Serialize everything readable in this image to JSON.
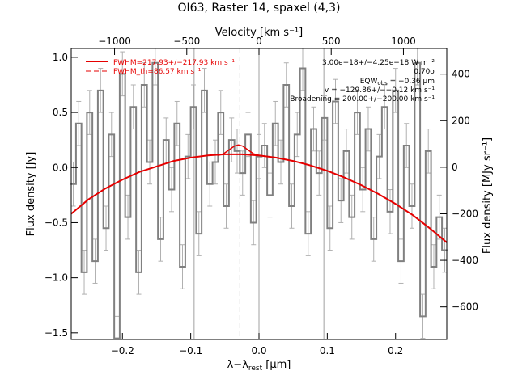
{
  "chart_data": {
    "type": "line",
    "title": "OI63, Raster 14, spaxel (4,3)",
    "xlabel_main": "λ−λ",
    "xlabel_sub": "rest",
    "xlabel_unit": " [μm]",
    "ylabel_left": "Flux density [Jy]",
    "ylabel_right": "Flux density [MJy sr⁻¹]",
    "top_axis_label": "Velocity [km s⁻¹]",
    "xlim": [
      -0.275,
      0.275
    ],
    "ylim": [
      -1.56,
      1.08
    ],
    "right_ylim": [
      -740,
      510
    ],
    "top_xlim": [
      -1300,
      1300
    ],
    "x_ticks": [
      -0.2,
      -0.1,
      0.0,
      0.1,
      0.2
    ],
    "x_tick_labels": [
      "−0.2",
      "−0.1",
      "0.0",
      "0.1",
      "0.2"
    ],
    "y_ticks": [
      1.0,
      0.5,
      0.0,
      -0.5,
      -1.0,
      -1.5
    ],
    "y_tick_labels": [
      "1.0",
      "0.5",
      "0.0",
      "−0.5",
      "−1.0",
      "−1.5"
    ],
    "right_ticks": [
      400,
      200,
      0,
      -200,
      -400,
      -600
    ],
    "right_tick_labels": [
      "400",
      "200",
      "0",
      "−200",
      "−400",
      "−600"
    ],
    "top_ticks": [
      -1000,
      -500,
      0,
      500,
      1000
    ],
    "top_tick_labels": [
      "−1000",
      "−500",
      "0",
      "500",
      "1000"
    ],
    "reference_lines_x": [
      -0.095,
      0.0,
      0.095
    ],
    "line_center_x": -0.028,
    "legend": [
      {
        "label": "FWHM=217.93+/−217.93 km s⁻¹",
        "style": "solid"
      },
      {
        "label": "FWHM_th=86.57 km s⁻¹",
        "style": "dashed"
      }
    ],
    "annotations": [
      "3.00e−18+/−4.25e−18 W m⁻²",
      "0.70σ",
      "EQW",
      "obs",
      " = −0.36 μm",
      "v = −129.86+/−−0.12 km s⁻¹",
      "Broadening = 200.00+/−200.00 km s⁻¹"
    ],
    "spectrum": {
      "x": [
        -0.272,
        -0.264,
        -0.256,
        -0.248,
        -0.24,
        -0.232,
        -0.224,
        -0.216,
        -0.208,
        -0.2,
        -0.192,
        -0.184,
        -0.176,
        -0.168,
        -0.16,
        -0.152,
        -0.144,
        -0.136,
        -0.128,
        -0.12,
        -0.112,
        -0.104,
        -0.096,
        -0.088,
        -0.08,
        -0.072,
        -0.064,
        -0.056,
        -0.048,
        -0.04,
        -0.032,
        -0.024,
        -0.016,
        -0.008,
        0.0,
        0.008,
        0.016,
        0.024,
        0.032,
        0.04,
        0.048,
        0.056,
        0.064,
        0.072,
        0.08,
        0.088,
        0.096,
        0.104,
        0.112,
        0.12,
        0.128,
        0.136,
        0.144,
        0.152,
        0.16,
        0.168,
        0.176,
        0.184,
        0.192,
        0.2,
        0.208,
        0.216,
        0.224,
        0.232,
        0.24,
        0.248,
        0.256,
        0.264,
        0.272
      ],
      "y": [
        -0.15,
        0.4,
        -0.95,
        0.5,
        -0.85,
        0.7,
        -0.55,
        0.3,
        -1.55,
        0.85,
        -0.45,
        0.55,
        -0.95,
        0.75,
        0.05,
        0.95,
        -0.65,
        0.25,
        -0.2,
        0.4,
        -0.9,
        0.1,
        0.55,
        -0.6,
        0.7,
        -0.15,
        0.05,
        0.5,
        -0.35,
        0.25,
        0.15,
        -0.05,
        0.3,
        -0.5,
        0.1,
        0.2,
        -0.25,
        0.4,
        0.05,
        0.75,
        -0.35,
        0.3,
        0.9,
        -0.6,
        0.35,
        -0.05,
        0.45,
        -0.55,
        0.6,
        -0.3,
        0.15,
        -0.45,
        0.5,
        -0.2,
        0.35,
        -0.65,
        0.1,
        0.55,
        -0.4,
        0.7,
        -0.85,
        0.2,
        -0.35,
        0.95,
        -1.35,
        0.15,
        -0.9,
        -0.45,
        -0.75
      ],
      "err": 0.2
    },
    "continuum": {
      "x": [
        -0.275,
        -0.25,
        -0.225,
        -0.2,
        -0.175,
        -0.15,
        -0.125,
        -0.1,
        -0.075,
        -0.05,
        -0.025,
        0.0,
        0.025,
        0.05,
        0.075,
        0.1,
        0.125,
        0.15,
        0.175,
        0.2,
        0.225,
        0.25,
        0.275
      ],
      "y": [
        -0.42,
        -0.29,
        -0.19,
        -0.11,
        -0.04,
        0.01,
        0.06,
        0.09,
        0.11,
        0.12,
        0.12,
        0.11,
        0.09,
        0.06,
        0.02,
        -0.03,
        -0.09,
        -0.16,
        -0.24,
        -0.33,
        -0.43,
        -0.55,
        -0.68
      ]
    },
    "gaussian_fit": {
      "x": [
        -0.06,
        -0.052,
        -0.044,
        -0.036,
        -0.03,
        -0.024,
        -0.016,
        -0.008,
        0.0
      ],
      "y": [
        0.11,
        0.125,
        0.16,
        0.195,
        0.205,
        0.195,
        0.16,
        0.125,
        0.11
      ]
    },
    "colors": {
      "spectrum": "#808080",
      "fit": "#e60000",
      "axes": "#000000",
      "reference": "#a0a0a0"
    }
  }
}
